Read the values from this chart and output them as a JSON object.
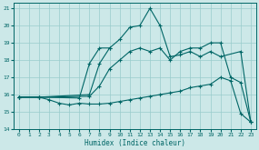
{
  "xlabel": "Humidex (Indice chaleur)",
  "bg_color": "#cce8e8",
  "line_color": "#006666",
  "grid_color": "#99cccc",
  "xlim": [
    -0.5,
    23.5
  ],
  "ylim": [
    14,
    21.3
  ],
  "xticks": [
    0,
    1,
    2,
    3,
    4,
    5,
    6,
    7,
    8,
    9,
    10,
    11,
    12,
    13,
    14,
    15,
    16,
    17,
    18,
    19,
    20,
    21,
    22,
    23
  ],
  "yticks": [
    14,
    15,
    16,
    17,
    18,
    19,
    20,
    21
  ],
  "lines": [
    {
      "x": [
        0,
        2,
        7,
        8,
        9,
        10,
        11,
        12,
        13,
        14,
        15,
        16,
        17,
        18,
        19,
        20,
        22,
        23
      ],
      "y": [
        15.85,
        15.85,
        16.0,
        17.8,
        18.7,
        19.2,
        19.9,
        20.0,
        21.0,
        20.0,
        18.2,
        18.3,
        18.5,
        18.2,
        18.5,
        18.2,
        18.5,
        14.4
      ]
    },
    {
      "x": [
        0,
        2,
        7,
        8,
        9,
        10,
        11,
        12,
        13,
        14,
        15,
        16,
        17,
        18,
        19,
        20,
        21,
        22,
        23
      ],
      "y": [
        15.85,
        15.85,
        15.9,
        16.5,
        17.5,
        18.0,
        18.5,
        18.7,
        18.5,
        18.7,
        18.0,
        18.5,
        18.7,
        18.7,
        19.0,
        19.0,
        17.0,
        16.7,
        14.4
      ]
    },
    {
      "x": [
        0,
        2,
        6,
        7,
        8,
        9
      ],
      "y": [
        15.85,
        15.85,
        15.8,
        17.8,
        18.7,
        18.7
      ]
    },
    {
      "x": [
        0,
        2,
        3,
        4,
        5,
        6,
        7,
        8,
        9,
        10,
        11,
        12,
        13,
        14,
        15,
        16,
        17,
        18,
        19,
        20,
        21,
        22,
        23
      ],
      "y": [
        15.85,
        15.85,
        15.7,
        15.5,
        15.4,
        15.5,
        15.45,
        15.45,
        15.5,
        15.6,
        15.7,
        15.8,
        15.9,
        16.0,
        16.1,
        16.2,
        16.4,
        16.5,
        16.6,
        17.0,
        16.8,
        14.9,
        14.4
      ]
    }
  ]
}
